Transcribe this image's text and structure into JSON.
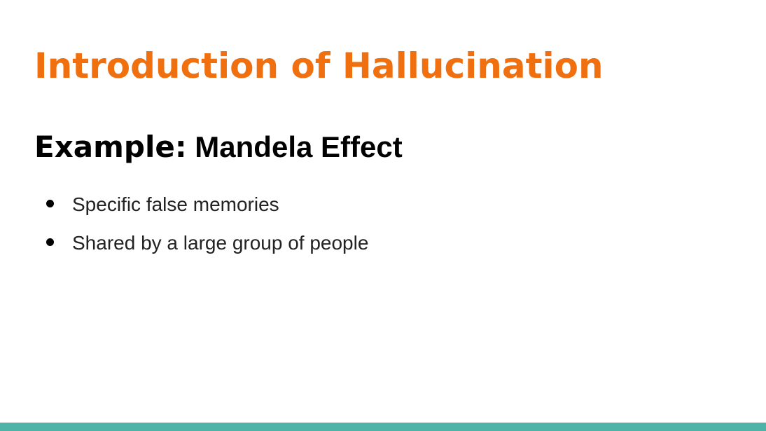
{
  "slide": {
    "title": "Introduction of Hallucination",
    "subtitle_lead": "Example:",
    "subtitle_rest": " Mandela Effect",
    "bullets": [
      "Specific false memories",
      "Shared by a large group of people"
    ]
  },
  "colors": {
    "title": "#f0700f",
    "accent_bar": "#4fb3a8",
    "bullet_text": "#222222"
  }
}
